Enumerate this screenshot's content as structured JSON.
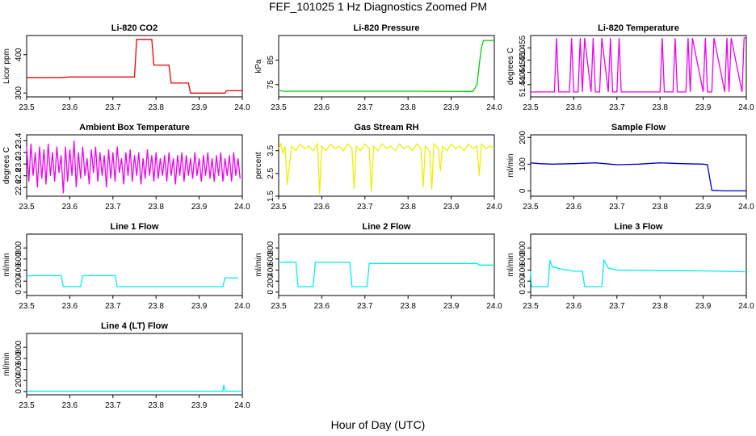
{
  "figure": {
    "title": "FEF_101025  1 Hz Diagnostics Zoomed PM",
    "xlabel": "Hour of Day (UTC)"
  },
  "chart_data": [
    {
      "type": "line",
      "title": "Li-820 CO2",
      "xlabel": "",
      "ylabel": "Licor ppm",
      "color": "#ee0000",
      "xlim": [
        23.5,
        24.0
      ],
      "ylim": [
        290,
        450
      ],
      "xticks": [
        "23.5",
        "23.6",
        "23.7",
        "23.8",
        "23.9",
        "24.0"
      ],
      "yticks": [
        "300",
        "400"
      ],
      "ytick_values": [
        300,
        400
      ],
      "x": [
        23.5,
        23.58,
        23.6,
        23.75,
        23.755,
        23.79,
        23.795,
        23.83,
        23.835,
        23.875,
        23.88,
        23.96,
        23.963,
        24.0
      ],
      "y": [
        340,
        340,
        342,
        342,
        440,
        440,
        373,
        373,
        326,
        326,
        300,
        300,
        306,
        306
      ]
    },
    {
      "type": "line",
      "title": "Li-820 Pressure",
      "xlabel": "",
      "ylabel": "kPa",
      "color": "#00cc00",
      "xlim": [
        23.5,
        24.0
      ],
      "ylim": [
        70,
        95
      ],
      "xticks": [
        "23.5",
        "23.6",
        "23.7",
        "23.8",
        "23.9",
        "24.0"
      ],
      "yticks": [
        "75",
        "85"
      ],
      "ytick_values": [
        75,
        85
      ],
      "x": [
        23.5,
        23.51,
        23.6,
        23.8,
        23.94,
        23.95,
        23.96,
        23.965,
        23.97,
        23.975,
        24.0
      ],
      "y": [
        72.7,
        72.3,
        72.3,
        72.3,
        72.2,
        72.2,
        75.0,
        83.0,
        90.0,
        93.0,
        93.0
      ]
    },
    {
      "type": "line",
      "title": "Li-820 Temperature",
      "xlabel": "",
      "ylabel": "degrees C",
      "color": "#ee00ee",
      "xlim": [
        23.5,
        24.0
      ],
      "ylim": [
        51.435,
        51.46
      ],
      "xticks": [
        "23.5",
        "23.6",
        "23.7",
        "23.8",
        "23.9",
        "24.0"
      ],
      "yticks": [
        "51.440",
        "51.445",
        "51.450",
        "51.455"
      ],
      "ytick_values": [
        51.44,
        51.445,
        51.45,
        51.455
      ],
      "x": [
        23.5,
        23.555,
        23.56,
        23.565,
        23.59,
        23.595,
        23.6,
        23.61,
        23.615,
        23.62,
        23.625,
        23.64,
        23.645,
        23.65,
        23.66,
        23.665,
        23.68,
        23.685,
        23.69,
        23.7,
        23.705,
        23.71,
        23.8,
        23.805,
        23.81,
        23.83,
        23.835,
        23.84,
        23.86,
        23.865,
        23.87,
        23.875,
        23.9,
        23.905,
        23.91,
        23.92,
        23.925,
        23.95,
        23.955,
        23.96,
        23.965,
        23.99,
        23.995,
        24.0
      ],
      "y": [
        51.437,
        51.437,
        51.459,
        51.437,
        51.437,
        51.459,
        51.437,
        51.437,
        51.459,
        51.437,
        51.459,
        51.437,
        51.459,
        51.437,
        51.437,
        51.459,
        51.437,
        51.459,
        51.437,
        51.437,
        51.459,
        51.437,
        51.437,
        51.459,
        51.437,
        51.437,
        51.459,
        51.437,
        51.437,
        51.459,
        51.437,
        51.459,
        51.437,
        51.459,
        51.437,
        51.437,
        51.459,
        51.437,
        51.459,
        51.437,
        51.459,
        51.437,
        51.459,
        51.459
      ]
    },
    {
      "type": "line",
      "title": "Ambient Box Temperature",
      "xlabel": "",
      "ylabel": "degrees C",
      "color": "#ee00ee",
      "xlim": [
        23.5,
        24.0
      ],
      "ylim": [
        22.45,
        23.5
      ],
      "xticks": [
        "23.5",
        "23.6",
        "23.7",
        "23.8",
        "23.9",
        "24.0"
      ],
      "yticks": [
        "22.6",
        "22.8",
        "23.0",
        "23.2",
        "23.4"
      ],
      "ytick_values": [
        22.6,
        22.8,
        23.0,
        23.2,
        23.4
      ],
      "x": [
        23.5,
        23.505,
        23.51,
        23.515,
        23.52,
        23.525,
        23.53,
        23.535,
        23.54,
        23.545,
        23.55,
        23.555,
        23.56,
        23.565,
        23.57,
        23.575,
        23.58,
        23.585,
        23.59,
        23.595,
        23.6,
        23.605,
        23.61,
        23.615,
        23.62,
        23.625,
        23.63,
        23.635,
        23.64,
        23.645,
        23.65,
        23.655,
        23.66,
        23.665,
        23.67,
        23.675,
        23.68,
        23.685,
        23.69,
        23.695,
        23.7,
        23.705,
        23.71,
        23.715,
        23.72,
        23.725,
        23.73,
        23.735,
        23.74,
        23.745,
        23.75,
        23.755,
        23.76,
        23.765,
        23.77,
        23.775,
        23.78,
        23.785,
        23.79,
        23.795,
        23.8,
        23.805,
        23.81,
        23.815,
        23.82,
        23.825,
        23.83,
        23.835,
        23.84,
        23.845,
        23.85,
        23.855,
        23.86,
        23.865,
        23.87,
        23.875,
        23.88,
        23.885,
        23.89,
        23.895,
        23.9,
        23.905,
        23.91,
        23.915,
        23.92,
        23.925,
        23.93,
        23.935,
        23.94,
        23.945,
        23.95,
        23.955,
        23.96,
        23.965,
        23.97,
        23.975,
        23.98,
        23.985,
        23.99,
        23.995
      ],
      "y": [
        23.3,
        22.7,
        23.35,
        22.8,
        23.2,
        22.6,
        23.3,
        22.75,
        23.25,
        22.65,
        23.35,
        22.8,
        23.2,
        22.7,
        23.3,
        22.85,
        23.15,
        22.5,
        23.3,
        22.7,
        23.25,
        22.8,
        23.4,
        22.6,
        23.2,
        22.75,
        23.3,
        22.8,
        23.1,
        22.65,
        23.25,
        22.85,
        23.3,
        22.7,
        23.2,
        22.8,
        23.15,
        22.6,
        23.25,
        22.75,
        23.2,
        22.7,
        23.3,
        22.85,
        23.1,
        22.65,
        23.2,
        22.8,
        23.25,
        22.7,
        23.15,
        22.8,
        23.2,
        22.65,
        23.1,
        22.75,
        23.25,
        22.8,
        23.15,
        22.7,
        23.2,
        22.75,
        23.1,
        22.8,
        23.15,
        22.7,
        23.2,
        22.8,
        23.1,
        22.65,
        23.15,
        22.8,
        23.2,
        22.7,
        23.15,
        22.8,
        23.1,
        22.75,
        23.2,
        22.8,
        23.1,
        22.7,
        23.15,
        22.8,
        23.2,
        22.75,
        23.1,
        22.7,
        23.15,
        22.8,
        23.2,
        22.7,
        23.1,
        22.8,
        23.15,
        22.7,
        23.2,
        22.8,
        23.1,
        22.75
      ]
    },
    {
      "type": "line",
      "title": "Gas Stream RH",
      "xlabel": "",
      "ylabel": "percent",
      "color": "#eeee00",
      "xlim": [
        23.5,
        24.0
      ],
      "ylim": [
        1.5,
        4.2
      ],
      "xticks": [
        "23.5",
        "23.6",
        "23.7",
        "23.8",
        "23.9",
        "24.0"
      ],
      "yticks": [
        "1.5",
        "2.5",
        "3.5"
      ],
      "ytick_values": [
        1.5,
        2.5,
        3.5
      ],
      "x": [
        23.5,
        23.505,
        23.51,
        23.515,
        23.52,
        23.53,
        23.54,
        23.55,
        23.56,
        23.57,
        23.58,
        23.59,
        23.595,
        23.6,
        23.61,
        23.62,
        23.63,
        23.64,
        23.65,
        23.66,
        23.67,
        23.675,
        23.68,
        23.69,
        23.7,
        23.71,
        23.715,
        23.72,
        23.73,
        23.74,
        23.75,
        23.76,
        23.77,
        23.78,
        23.79,
        23.8,
        23.81,
        23.82,
        23.83,
        23.835,
        23.84,
        23.85,
        23.855,
        23.86,
        23.87,
        23.875,
        23.88,
        23.89,
        23.9,
        23.91,
        23.92,
        23.93,
        23.94,
        23.95,
        23.96,
        23.965,
        23.97,
        23.98,
        23.99,
        24.0
      ],
      "y": [
        3.6,
        3.8,
        3.4,
        3.7,
        2.0,
        3.7,
        3.5,
        3.8,
        3.6,
        3.7,
        3.5,
        3.8,
        1.6,
        3.7,
        3.5,
        3.8,
        3.6,
        3.7,
        3.5,
        3.8,
        3.6,
        1.8,
        3.7,
        3.5,
        3.8,
        3.6,
        1.7,
        3.7,
        3.5,
        3.8,
        3.6,
        3.7,
        3.5,
        3.8,
        3.6,
        3.7,
        3.5,
        3.8,
        3.6,
        1.9,
        3.7,
        3.5,
        1.8,
        3.8,
        3.6,
        2.6,
        3.7,
        3.5,
        3.8,
        3.6,
        3.7,
        3.5,
        3.8,
        3.6,
        3.7,
        2.4,
        3.8,
        3.6,
        3.7,
        3.6
      ]
    },
    {
      "type": "line",
      "title": "Sample Flow",
      "xlabel": "",
      "ylabel": "ml/min",
      "color": "#0000cc",
      "xlim": [
        23.5,
        24.0
      ],
      "ylim": [
        -20,
        210
      ],
      "xticks": [
        "23.5",
        "23.6",
        "23.7",
        "23.8",
        "23.9",
        "24.0"
      ],
      "yticks": [
        "0",
        "100",
        "200"
      ],
      "ytick_values": [
        0,
        100,
        200
      ],
      "x": [
        23.5,
        23.52,
        23.55,
        23.6,
        23.65,
        23.7,
        23.75,
        23.8,
        23.85,
        23.9,
        23.91,
        23.92,
        23.95,
        24.0
      ],
      "y": [
        105,
        102,
        100,
        102,
        105,
        98,
        100,
        105,
        102,
        100,
        98,
        2,
        0,
        0
      ]
    },
    {
      "type": "line",
      "title": "Line 1 Flow",
      "xlabel": "",
      "ylabel": "ml/min",
      "color": "#00eeee",
      "xlim": [
        23.5,
        24.0
      ],
      "ylim": [
        -60,
        1050
      ],
      "xticks": [
        "23.5",
        "23.6",
        "23.7",
        "23.8",
        "23.9",
        "24.0"
      ],
      "yticks": [
        "0",
        "200",
        "400",
        "600",
        "800"
      ],
      "ytick_values": [
        0,
        200,
        400,
        600,
        800
      ],
      "x": [
        23.5,
        23.505,
        23.58,
        23.585,
        23.625,
        23.63,
        23.705,
        23.71,
        23.955,
        23.96,
        23.99
      ],
      "y": [
        280,
        300,
        300,
        100,
        100,
        300,
        300,
        100,
        100,
        260,
        260
      ]
    },
    {
      "type": "line",
      "title": "Line 2 Flow",
      "xlabel": "",
      "ylabel": "ml/min",
      "color": "#00eeee",
      "xlim": [
        23.5,
        24.0
      ],
      "ylim": [
        -60,
        1050
      ],
      "xticks": [
        "23.5",
        "23.6",
        "23.7",
        "23.8",
        "23.9",
        "24.0"
      ],
      "yticks": [
        "0",
        "200",
        "400",
        "600",
        "800"
      ],
      "ytick_values": [
        0,
        200,
        400,
        600,
        800
      ],
      "x": [
        23.5,
        23.54,
        23.545,
        23.58,
        23.585,
        23.665,
        23.67,
        23.705,
        23.71,
        23.96,
        23.965,
        24.0
      ],
      "y": [
        540,
        540,
        100,
        100,
        540,
        540,
        100,
        100,
        520,
        520,
        490,
        490
      ]
    },
    {
      "type": "line",
      "title": "Line 3 Flow",
      "xlabel": "",
      "ylabel": "ml/min",
      "color": "#00eeee",
      "xlim": [
        23.5,
        24.0
      ],
      "ylim": [
        -60,
        1050
      ],
      "xticks": [
        "23.5",
        "23.6",
        "23.7",
        "23.8",
        "23.9",
        "24.0"
      ],
      "yticks": [
        "0",
        "200",
        "400",
        "600",
        "800"
      ],
      "ytick_values": [
        0,
        200,
        400,
        600,
        800
      ],
      "x": [
        23.5,
        23.502,
        23.505,
        23.54,
        23.545,
        23.55,
        23.57,
        23.6,
        23.62,
        23.625,
        23.665,
        23.67,
        23.68,
        23.7,
        23.8,
        23.9,
        24.0
      ],
      "y": [
        380,
        100,
        100,
        100,
        580,
        460,
        420,
        380,
        380,
        100,
        100,
        580,
        440,
        400,
        390,
        385,
        370
      ]
    },
    {
      "type": "line",
      "title": "Line 4 (LT) Flow",
      "xlabel": "",
      "ylabel": "ml/min",
      "color": "#00eeee",
      "xlim": [
        23.5,
        24.0
      ],
      "ylim": [
        -60,
        1050
      ],
      "xticks": [
        "23.5",
        "23.6",
        "23.7",
        "23.8",
        "23.9",
        "24.0"
      ],
      "yticks": [
        "0",
        "200",
        "400",
        "600",
        "800"
      ],
      "ytick_values": [
        0,
        200,
        400,
        600,
        800
      ],
      "x": [
        23.5,
        23.955,
        23.957,
        23.96,
        23.962,
        24.0
      ],
      "y": [
        5,
        5,
        120,
        10,
        5,
        5
      ]
    }
  ]
}
